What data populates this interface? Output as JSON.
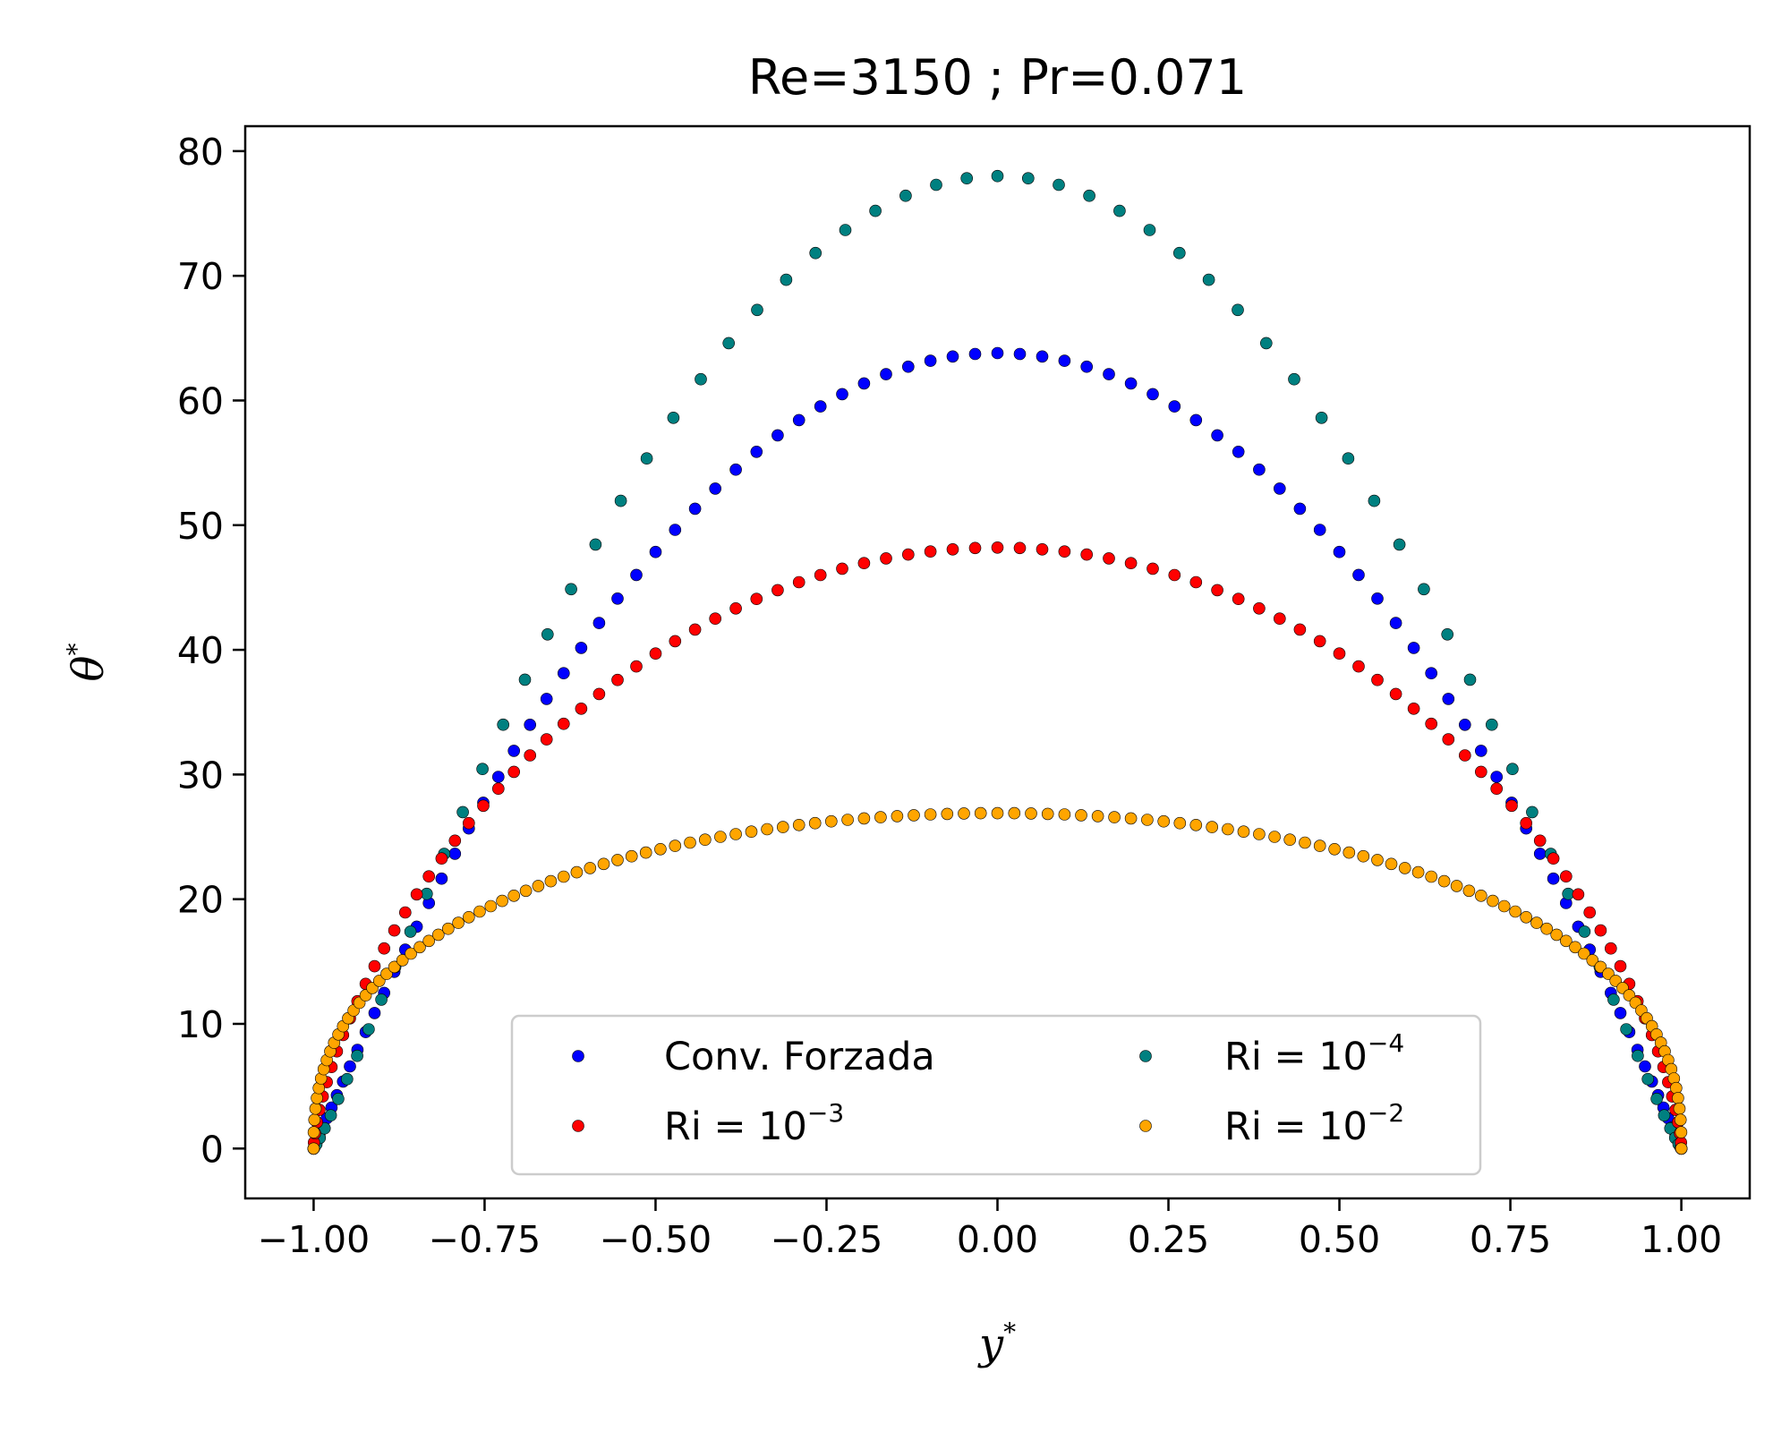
{
  "chart_data": {
    "type": "scatter",
    "title": "Re=3150 ; Pr=0.071",
    "xlabel": "y",
    "xlabel_sup": "*",
    "ylabel": "θ",
    "ylabel_sup": "*",
    "xlim": [
      -1.1,
      1.1
    ],
    "ylim": [
      -4,
      82
    ],
    "xticks": [
      -1.0,
      -0.75,
      -0.5,
      -0.25,
      0.0,
      0.25,
      0.5,
      0.75,
      1.0
    ],
    "xtick_labels": [
      "−1.00",
      "−0.75",
      "−0.50",
      "−0.25",
      "0.00",
      "0.25",
      "0.50",
      "0.75",
      "1.00"
    ],
    "yticks": [
      0,
      10,
      20,
      30,
      40,
      50,
      60,
      70,
      80
    ],
    "ytick_labels": [
      "0",
      "10",
      "20",
      "30",
      "40",
      "50",
      "60",
      "70",
      "80"
    ],
    "grid": false,
    "legend": {
      "position": "lower center",
      "columns": 2
    },
    "series": [
      {
        "name": "Conv. Forzada",
        "name_base": "Conv. Forzada",
        "name_sup": "",
        "color": "#0000ff",
        "peak": 63.8,
        "shape": 1.0,
        "n": 96
      },
      {
        "name": "Ri = 10−4",
        "name_base": "Ri = 10",
        "name_sup": "−4",
        "color": "#008080",
        "peak": 78.0,
        "shape": 1.05,
        "n": 70
      },
      {
        "name": "Ri = 10−3",
        "name_base": "Ri = 10",
        "name_sup": "−3",
        "color": "#ff0000",
        "peak": 48.2,
        "shape": 0.78,
        "n": 96
      },
      {
        "name": "Ri = 10−2",
        "name_base": "Ri = 10",
        "name_sup": "−2",
        "color": "#ffa500",
        "peak": 26.9,
        "shape": 0.34,
        "n": 128
      }
    ],
    "legend_order": [
      0,
      2,
      1,
      3
    ]
  }
}
